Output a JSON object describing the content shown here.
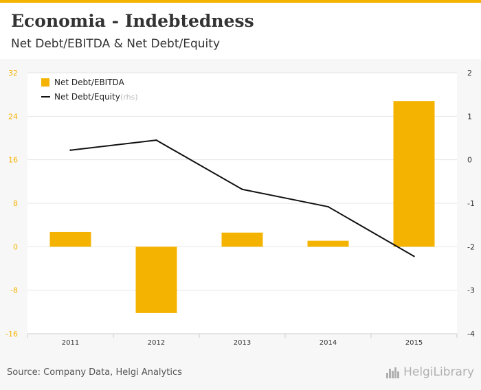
{
  "header": {
    "title": "Economia - Indebtedness",
    "subtitle": "Net Debt/EBITDA & Net Debt/Equity"
  },
  "colors": {
    "accent": "#f5b301",
    "line": "#111111",
    "grid": "#e6e6e6",
    "left_axis_text": "#f5b301",
    "right_axis_text": "#333333"
  },
  "chart_data": {
    "type": "bar+line",
    "categories": [
      "2011",
      "2012",
      "2013",
      "2014",
      "2015"
    ],
    "series": [
      {
        "name": "Net Debt/EBITDA",
        "type": "bar",
        "axis": "left",
        "values": [
          2.7,
          -12.2,
          2.6,
          1.1,
          26.8
        ]
      },
      {
        "name": "Net Debt/Equity",
        "type": "line",
        "axis": "right",
        "values": [
          0.22,
          0.45,
          -0.68,
          -1.08,
          -2.22
        ]
      }
    ],
    "legend": [
      {
        "label": "Net Debt/EBITDA",
        "suffix": ""
      },
      {
        "label": "Net Debt/Equity",
        "suffix": "(rhs)"
      }
    ],
    "y_left": {
      "min": -16,
      "max": 32,
      "ticks": [
        32,
        24,
        16,
        8,
        0,
        -8,
        -16
      ]
    },
    "y_right": {
      "min": -4,
      "max": 2,
      "ticks": [
        2,
        1,
        0,
        -1,
        -2,
        -3,
        -4
      ]
    },
    "grid": true,
    "legend_position": "top-left"
  },
  "footer": {
    "source": "Source: Company Data, Helgi Analytics",
    "brand": "HelgiLibrary"
  }
}
